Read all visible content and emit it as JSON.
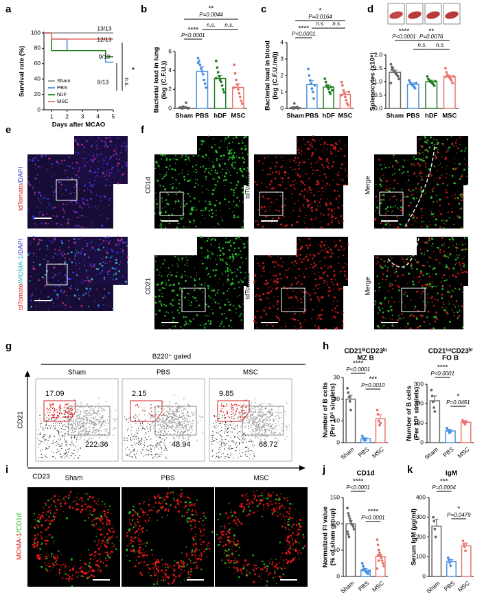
{
  "figure": {
    "panel_labels": [
      "a",
      "b",
      "c",
      "d",
      "e",
      "f",
      "g",
      "h",
      "i",
      "j",
      "k"
    ],
    "e": {
      "labels": [
        [
          "tdTomato",
          "/DAPI"
        ],
        [
          "tdTomato",
          "/MOMA-1",
          "/DAPI"
        ]
      ]
    },
    "f": {
      "labels": [
        "CD1d",
        "tdTomato",
        "Merge",
        "CD21",
        "tdTomato",
        "Merge"
      ]
    },
    "g": {
      "header": "B220⁺ gated",
      "groups": [
        "Sham",
        "PBS",
        "MSC"
      ],
      "gate_mz": [
        17.09,
        2.15,
        9.85
      ],
      "gate_fo": [
        222.36,
        48.94,
        68.72
      ],
      "y_label": "CD21",
      "x_label": "CD23"
    },
    "i": {
      "groups": [
        "Sham",
        "PBS",
        "MSC"
      ],
      "label": [
        "MOMA-1",
        "/CD1d"
      ]
    }
  },
  "chart_data": [
    {
      "type": "line",
      "y_label": [
        "Survival rate (%)"
      ],
      "x_label": "Days after MCAO",
      "xlim": [
        0.5,
        5
      ],
      "xticks": [
        1,
        2,
        3,
        4,
        5
      ],
      "ylim": [
        0,
        100
      ],
      "yticks": [
        0,
        20,
        40,
        60,
        80,
        100
      ],
      "series": [
        {
          "name": "Sham",
          "color": "#8c8c8c",
          "x": [
            0.5,
            5
          ],
          "values": [
            100,
            100
          ]
        },
        {
          "name": "PBS",
          "color": "#4a90e2",
          "x": [
            0.5,
            1,
            1,
            2,
            2,
            4.5,
            4.5,
            5
          ],
          "values": [
            100,
            100,
            92,
            92,
            77,
            77,
            62,
            62
          ]
        },
        {
          "name": "hDF",
          "color": "#1e7d1e",
          "x": [
            0.5,
            1,
            1,
            4.5,
            4.5,
            5
          ],
          "values": [
            100,
            100,
            77,
            77,
            69,
            69
          ]
        },
        {
          "name": "MSC",
          "color": "#e8736c",
          "x": [
            0.5,
            1,
            1,
            5
          ],
          "values": [
            100,
            100,
            92,
            92
          ]
        }
      ],
      "annotations": [
        "13/13",
        "12/13",
        "9/13",
        "8/13",
        "*",
        "n.s."
      ]
    },
    {
      "type": "bar",
      "y_label": [
        "Bacterial load in lung",
        "(log (C.F.U.))"
      ],
      "categories": [
        "Sham",
        "PBS",
        "hDF",
        "MSC"
      ],
      "colors": [
        "#666666",
        "#4a90e2",
        "#1e7d1e",
        "#e8736c"
      ],
      "values": [
        0.1,
        3.9,
        3.15,
        2.2
      ],
      "errors": [
        0.1,
        0.5,
        0.35,
        0.4
      ],
      "points": [
        [
          0.05,
          0.1,
          0.0,
          0.2,
          0.05,
          0.1,
          0.6,
          0.05,
          0.0,
          0.1
        ],
        [
          5.3,
          5.0,
          4.6,
          4.2,
          3.9,
          3.6,
          3.0,
          2.6,
          2.2,
          4.8
        ],
        [
          5.0,
          4.3,
          3.8,
          3.4,
          3.0,
          2.8,
          2.4,
          2.0,
          1.7,
          3.2
        ],
        [
          4.6,
          3.7,
          3.0,
          2.5,
          2.0,
          1.6,
          1.2,
          0.8,
          0.5,
          2.2
        ]
      ],
      "ylim": [
        0,
        6
      ],
      "yticks": [
        0,
        2,
        4,
        6
      ],
      "annotations": [
        "****",
        "P<0.0001",
        "**",
        "P=0.0044",
        "n.s.",
        "n.s."
      ]
    },
    {
      "type": "bar",
      "y_label": [
        "Bacterial load in blood",
        "(log (C.F.U./ml))"
      ],
      "categories": [
        "Sham",
        "PBS",
        "hDF",
        "MSC"
      ],
      "colors": [
        "#666666",
        "#4a90e2",
        "#1e7d1e",
        "#e8736c"
      ],
      "values": [
        0.05,
        1.45,
        1.3,
        0.85
      ],
      "errors": [
        0.05,
        0.25,
        0.12,
        0.15
      ],
      "points": [
        [
          0.02,
          0.05,
          0.0,
          0.3,
          0.02,
          0.05,
          0.1,
          0.0
        ],
        [
          2.4,
          2.0,
          1.7,
          1.5,
          1.2,
          1.0,
          0.6,
          1.4
        ],
        [
          1.8,
          1.6,
          1.4,
          1.3,
          1.2,
          1.0,
          0.9,
          1.3,
          1.1
        ],
        [
          1.6,
          1.4,
          1.1,
          0.9,
          0.7,
          0.5,
          0.3,
          0.2,
          1.0,
          0.8
        ]
      ],
      "ylim": [
        0,
        4
      ],
      "yticks": [
        0,
        1,
        2,
        3,
        4
      ],
      "annotations": [
        "****",
        "P<0.0001",
        "*",
        "P=0.0164",
        "n.s.",
        "n.s."
      ]
    },
    {
      "type": "bar",
      "y_label": [
        "Splenocytes (x10⁸)"
      ],
      "categories": [
        "Sham",
        "PBS",
        "hDF",
        "MSC"
      ],
      "colors": [
        "#666666",
        "#4a90e2",
        "#1e7d1e",
        "#e8736c"
      ],
      "values": [
        1.35,
        0.9,
        1.0,
        1.18
      ],
      "errors": [
        0.08,
        0.05,
        0.05,
        0.06
      ],
      "points": [
        [
          1.65,
          1.55,
          1.5,
          1.4,
          1.35,
          1.3,
          1.25,
          1.2,
          1.1,
          0.95,
          1.45
        ],
        [
          1.05,
          0.98,
          0.92,
          0.88,
          0.85,
          0.8,
          0.75,
          0.95
        ],
        [
          1.2,
          1.1,
          1.05,
          1.0,
          0.98,
          0.95,
          0.9,
          0.85,
          1.02
        ],
        [
          1.5,
          1.35,
          1.25,
          1.2,
          1.15,
          1.1,
          1.05,
          0.95,
          1.2,
          1.18
        ]
      ],
      "ylim": [
        0,
        2
      ],
      "yticks": [
        {
          "value": 0,
          "label": "0.0"
        },
        {
          "value": 0.5,
          "label": "0.5"
        },
        {
          "value": 1,
          "label": "1.0"
        },
        {
          "value": 1.5,
          "label": "1.5"
        },
        {
          "value": 2,
          "label": "2.0"
        }
      ],
      "annotations": [
        "****",
        "P<0.0001",
        "**",
        "P=0.0076",
        "n.s.",
        "n.s."
      ]
    },
    {
      "type": "bar",
      "title": "CD21ʰⁱCD23ˡᵒ",
      "subtitle": "MZ B",
      "y_label": [
        "Number of B cells",
        "(Per 10⁵ singlets)"
      ],
      "categories": [
        "Sham",
        "PBS",
        "MSC"
      ],
      "colors": [
        "#666666",
        "#4a90e2",
        "#e8736c"
      ],
      "values": [
        20,
        1.8,
        11
      ],
      "errors": [
        1.8,
        0.4,
        1.8
      ],
      "points": [
        [
          25,
          23,
          21,
          19,
          15
        ],
        [
          3,
          2,
          1.5,
          1,
          1.2
        ],
        [
          15,
          13,
          10,
          8,
          9
        ]
      ],
      "ylim": [
        0,
        30
      ],
      "yticks": [
        0,
        10,
        20,
        30
      ],
      "annotations": [
        "****",
        "P<0.0001",
        "***",
        "P=0.0010"
      ]
    },
    {
      "type": "bar",
      "title": "CD21ⁱⁿᵗCD23ʰⁱ",
      "subtitle": "FO B",
      "y_label": [
        "Number of B cells",
        "(Per 10⁵ singlets)"
      ],
      "categories": [
        "Sham",
        "PBS",
        "MSC"
      ],
      "colors": [
        "#666666",
        "#4a90e2",
        "#e8736c"
      ],
      "values": [
        215,
        60,
        105
      ],
      "errors": [
        25,
        8,
        8
      ],
      "points": [
        [
          270,
          240,
          210,
          180,
          160
        ],
        [
          75,
          65,
          58,
          50,
          55
        ],
        [
          115,
          110,
          100,
          95,
          105
        ]
      ],
      "ylim": [
        0,
        300
      ],
      "yticks": [
        0,
        100,
        200,
        300
      ],
      "annotations": [
        "****",
        "P<0.0001",
        "*",
        "P=0.0451"
      ]
    },
    {
      "type": "bar",
      "title": "CD1d",
      "y_label": [
        "Normalized FI value",
        "(% of sham group)"
      ],
      "categories": [
        "Sham",
        "PBS",
        "MSC"
      ],
      "colors": [
        "#666666",
        "#4a90e2",
        "#e8736c"
      ],
      "values": [
        100,
        12,
        38
      ],
      "errors": [
        6,
        3,
        4
      ],
      "points": [
        [
          130,
          120,
          115,
          110,
          105,
          100,
          98,
          95,
          90,
          85,
          80,
          75
        ],
        [
          25,
          20,
          15,
          12,
          10,
          8,
          6,
          5,
          10,
          12
        ],
        [
          70,
          60,
          50,
          45,
          40,
          35,
          30,
          25,
          20,
          15,
          40,
          30
        ]
      ],
      "ylim": [
        0,
        150
      ],
      "yticks": [
        0,
        50,
        100,
        150
      ],
      "annotations": [
        "****",
        "P<0.0001",
        "****",
        "P<0.0001"
      ]
    },
    {
      "type": "bar",
      "title": "IgM",
      "y_label": [
        "Serum IgM (μg/ml)"
      ],
      "categories": [
        "Sham",
        "PBS",
        "MSC"
      ],
      "colors": [
        "#666666",
        "#4a90e2",
        "#e8736c"
      ],
      "values": [
        255,
        75,
        155
      ],
      "errors": [
        35,
        10,
        15
      ],
      "points": [
        [
          300,
          280,
          240,
          200
        ],
        [
          95,
          85,
          70,
          55
        ],
        [
          180,
          165,
          150,
          130
        ]
      ],
      "ylim": [
        0,
        400
      ],
      "yticks": [
        0,
        100,
        200,
        300,
        400
      ],
      "annotations": [
        "***",
        "P=0.0004",
        "*",
        "P=0.0479"
      ]
    }
  ]
}
